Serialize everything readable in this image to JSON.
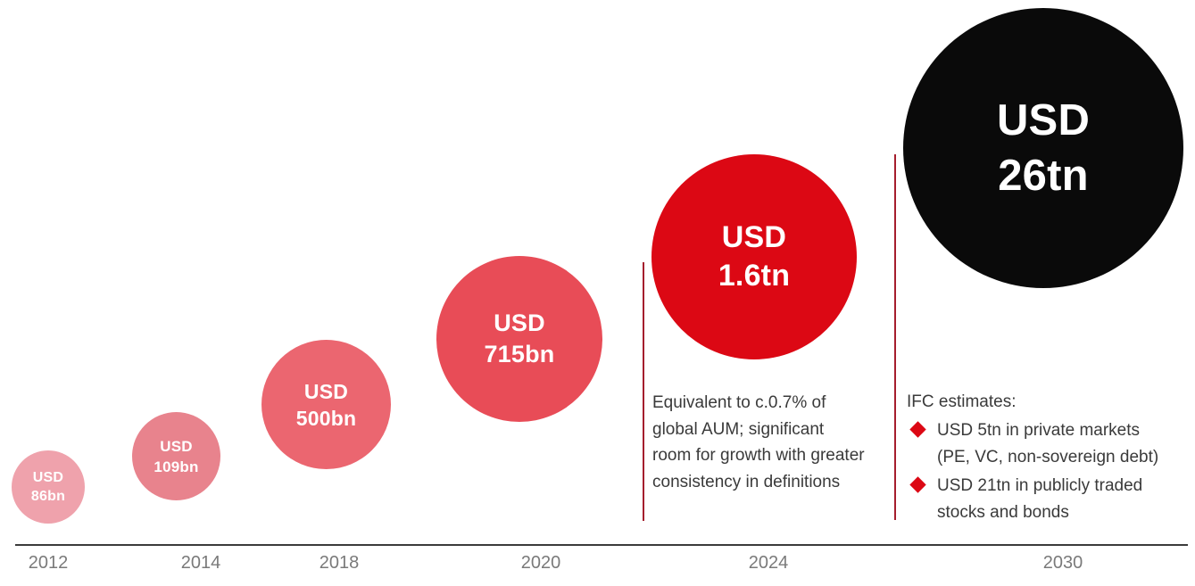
{
  "chart_data": {
    "type": "scatter",
    "subtype": "proportional-bubble-timeline",
    "x": [
      "2012",
      "2014",
      "2018",
      "2020",
      "2024",
      "2030"
    ],
    "values_usd_bn": [
      86,
      109,
      500,
      715,
      1600,
      26000
    ],
    "point_labels": [
      "USD 86bn",
      "USD 109bn",
      "USD 500bn",
      "USD 715bn",
      "USD 1.6tn",
      "USD 26tn"
    ],
    "point_colors": [
      "#EFA2AC",
      "#E8838D",
      "#EB6670",
      "#E84C57",
      "#DC0814",
      "#0A0A0A"
    ],
    "legend": false,
    "gridlines": false,
    "annotations": [
      {
        "x": "2024",
        "text": "Equivalent to c.0.7% of global AUM; significant room for growth with greater consistency in definitions"
      },
      {
        "x": "2030",
        "title": "IFC estimates:",
        "items": [
          "USD 5tn in private markets (PE, VC, non-sovereign debt)",
          "USD 21tn in publicly traded stocks and bonds"
        ]
      }
    ]
  },
  "bubbles": [
    {
      "year": "2012",
      "line1": "USD",
      "line2": "86bn",
      "color": "#EFA2AC"
    },
    {
      "year": "2014",
      "line1": "USD",
      "line2": "109bn",
      "color": "#E8838D"
    },
    {
      "year": "2018",
      "line1": "USD",
      "line2": "500bn",
      "color": "#EB6670"
    },
    {
      "year": "2020",
      "line1": "USD",
      "line2": "715bn",
      "color": "#E84C57"
    },
    {
      "year": "2024",
      "line1": "USD",
      "line2": "1.6tn",
      "color": "#DC0814"
    },
    {
      "year": "2030",
      "line1": "USD",
      "line2": "26tn",
      "color": "#0A0A0A"
    }
  ],
  "annotation_2024": {
    "text": "Equivalent to c.0.7% of global AUM; significant room for growth with greater consistency in definitions",
    "lines": [
      "Equivalent to c.0.7% of",
      "global AUM; significant",
      "room for growth with greater",
      "consistency in definitions"
    ]
  },
  "ifc": {
    "title": "IFC estimates:",
    "items": [
      {
        "text": "USD 5tn in private markets (PE, VC, non-sovereign debt)",
        "lines": [
          "USD 5tn in private markets",
          "(PE, VC, non-sovereign debt)"
        ]
      },
      {
        "text": "USD 21tn in publicly traded stocks and bonds",
        "lines": [
          "USD 21tn in publicly traded",
          "stocks and bonds"
        ]
      }
    ]
  },
  "colors": {
    "divider": "#A51E2D",
    "bullet": "#DC0814",
    "baseline": "#3B3B3B",
    "year_label": "#7A7A7A",
    "annotation_text": "#3A3A3A"
  }
}
